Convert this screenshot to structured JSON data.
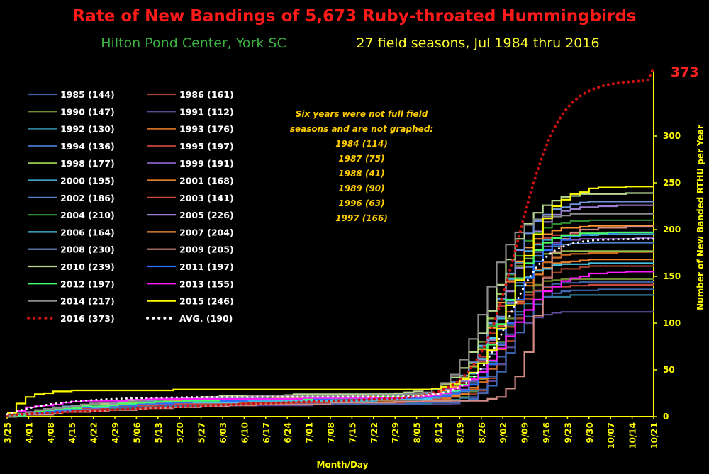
{
  "colors": {
    "background": "#000000",
    "title": "#ff1a1a",
    "subtitle_left": "#3cb043",
    "subtitle_right": "#ffff33",
    "axis": "#ffff00",
    "note": "#ffcc00",
    "max_label": "#ff2222"
  },
  "chart_data": {
    "type": "line",
    "title": "Rate of New Bandings of 5,673 Ruby-throated Hummingbirds",
    "subtitle_left": "Hilton Pond Center, York SC",
    "subtitle_right": "27 field seasons, Jul 1984 thru 2016",
    "xlabel": "Month/Day",
    "ylabel": "Number of New Banded RTHU per Year",
    "x_tick_labels": [
      "3/25",
      "4/01",
      "4/08",
      "4/15",
      "4/22",
      "4/29",
      "5/06",
      "5/13",
      "5/20",
      "5/27",
      "6/03",
      "6/10",
      "6/17",
      "6/24",
      "7/01",
      "7/08",
      "7/15",
      "7/22",
      "7/29",
      "8/05",
      "8/12",
      "8/19",
      "8/26",
      "9/02",
      "9/09",
      "9/16",
      "9/23",
      "9/30",
      "10/07",
      "10/14",
      "10/21"
    ],
    "y_ticks": [
      0,
      50,
      100,
      150,
      200,
      250,
      300
    ],
    "ylim": [
      0,
      375
    ],
    "y_axis_side": "right",
    "legend_placement": "top-left",
    "max_annotation": "373",
    "note": [
      "Six years were not full field",
      "seasons and are not graphed:",
      "1984 (114)",
      "1987 (75)",
      "1988 (41)",
      "1989 (90)",
      "1996 (63)",
      "1997 (166)"
    ],
    "series": [
      {
        "name": "1985 (144)",
        "color": "#3a5fa0",
        "style": "solid",
        "final": 144,
        "s": 0.55,
        "m": 161,
        "k": 0.26,
        "b": 0.025
      },
      {
        "name": "1986 (161)",
        "color": "#a0412e",
        "style": "solid",
        "final": 161,
        "s": 0.55,
        "m": 163,
        "k": 0.23,
        "b": 0.02
      },
      {
        "name": "1990 (147)",
        "color": "#6e8a2f",
        "style": "solid",
        "final": 147,
        "s": 0.55,
        "m": 159,
        "k": 0.25,
        "b": 0.03
      },
      {
        "name": "1991 (112)",
        "color": "#5c4a96",
        "style": "solid",
        "final": 112,
        "s": 0.6,
        "m": 160,
        "k": 0.25,
        "b": 0.04
      },
      {
        "name": "1992 (130)",
        "color": "#2f7e95",
        "style": "solid",
        "final": 130,
        "s": 0.55,
        "m": 158,
        "k": 0.24,
        "b": 0.03
      },
      {
        "name": "1993 (176)",
        "color": "#d06b24",
        "style": "solid",
        "final": 176,
        "s": 0.55,
        "m": 162,
        "k": 0.22,
        "b": 0.025
      },
      {
        "name": "1994 (136)",
        "color": "#3e69b5",
        "style": "solid",
        "final": 136,
        "s": 0.55,
        "m": 163,
        "k": 0.24,
        "b": 0.03
      },
      {
        "name": "1995 (197)",
        "color": "#b03c33",
        "style": "solid",
        "final": 197,
        "s": 0.55,
        "m": 158,
        "k": 0.21,
        "b": 0.02
      },
      {
        "name": "1998 (177)",
        "color": "#8fbe4a",
        "style": "solid",
        "final": 177,
        "s": 0.55,
        "m": 155,
        "k": 0.22,
        "b": 0.03
      },
      {
        "name": "1999 (191)",
        "color": "#7e59b8",
        "style": "solid",
        "final": 191,
        "s": 0.55,
        "m": 160,
        "k": 0.21,
        "b": 0.025
      },
      {
        "name": "2000 (195)",
        "color": "#3ea6cf",
        "style": "solid",
        "final": 195,
        "s": 0.55,
        "m": 157,
        "k": 0.2,
        "b": 0.03
      },
      {
        "name": "2001 (168)",
        "color": "#e8822c",
        "style": "solid",
        "final": 168,
        "s": 0.55,
        "m": 161,
        "k": 0.21,
        "b": 0.035
      },
      {
        "name": "2002 (186)",
        "color": "#4e80c8",
        "style": "solid",
        "final": 186,
        "s": 0.55,
        "m": 160,
        "k": 0.22,
        "b": 0.025
      },
      {
        "name": "2003 (141)",
        "color": "#c84a3c",
        "style": "solid",
        "final": 141,
        "s": 0.6,
        "m": 156,
        "k": 0.2,
        "b": 0.04
      },
      {
        "name": "2004 (210)",
        "color": "#2f8a2f",
        "style": "solid",
        "final": 210,
        "s": 0.55,
        "m": 158,
        "k": 0.2,
        "b": 0.03
      },
      {
        "name": "2005 (226)",
        "color": "#9a7fd0",
        "style": "solid",
        "final": 226,
        "s": 0.55,
        "m": 161,
        "k": 0.18,
        "b": 0.03
      },
      {
        "name": "2006 (164)",
        "color": "#45c4e8",
        "style": "solid",
        "final": 164,
        "s": 0.55,
        "m": 157,
        "k": 0.2,
        "b": 0.035
      },
      {
        "name": "2007 (204)",
        "color": "#ff9433",
        "style": "solid",
        "final": 204,
        "s": 0.55,
        "m": 158,
        "k": 0.19,
        "b": 0.03
      },
      {
        "name": "2008 (230)",
        "color": "#6f94d8",
        "style": "solid",
        "final": 230,
        "s": 0.55,
        "m": 159,
        "k": 0.18,
        "b": 0.03
      },
      {
        "name": "2009 (205)",
        "color": "#d28a84",
        "style": "solid",
        "final": 205,
        "s": 0.6,
        "m": 171,
        "k": 0.3,
        "b": 0.01
      },
      {
        "name": "2010 (239)",
        "color": "#b7d890",
        "style": "solid",
        "final": 239,
        "s": 0.55,
        "m": 158,
        "k": 0.17,
        "b": 0.03
      },
      {
        "name": "2011 (197)",
        "color": "#2d6bff",
        "style": "solid",
        "final": 197,
        "s": 0.55,
        "m": 163,
        "k": 0.19,
        "b": 0.025
      },
      {
        "name": "2012 (197)",
        "color": "#44ff66",
        "style": "solid",
        "final": 197,
        "s": 0.55,
        "m": 160,
        "k": 0.19,
        "b": 0.03
      },
      {
        "name": "2013 (155)",
        "color": "#ff19ff",
        "style": "solid",
        "final": 155,
        "s": 3.5,
        "m": 162,
        "k": 0.14,
        "b": 0.07
      },
      {
        "name": "2014 (217)",
        "color": "#8c8c8c",
        "style": "solid",
        "final": 217,
        "s": 0.55,
        "m": 154,
        "k": 0.2,
        "b": 0.035
      },
      {
        "name": "2015 (246)",
        "color": "#ffff00",
        "style": "solid",
        "final": 246,
        "s": 3.5,
        "m": 164,
        "k": 0.17,
        "b": 0.2
      },
      {
        "name": "2016 (373)",
        "color": "#cc1111",
        "style": "dotted",
        "final": 373,
        "s": 1.5,
        "m": 166,
        "k": 0.15,
        "b": 0.005
      },
      {
        "name": "AVG. (190)",
        "color": "#ffffff",
        "style": "dotted",
        "final": 190,
        "s": 2.5,
        "m": 163,
        "k": 0.17,
        "b": 0.06
      }
    ]
  }
}
